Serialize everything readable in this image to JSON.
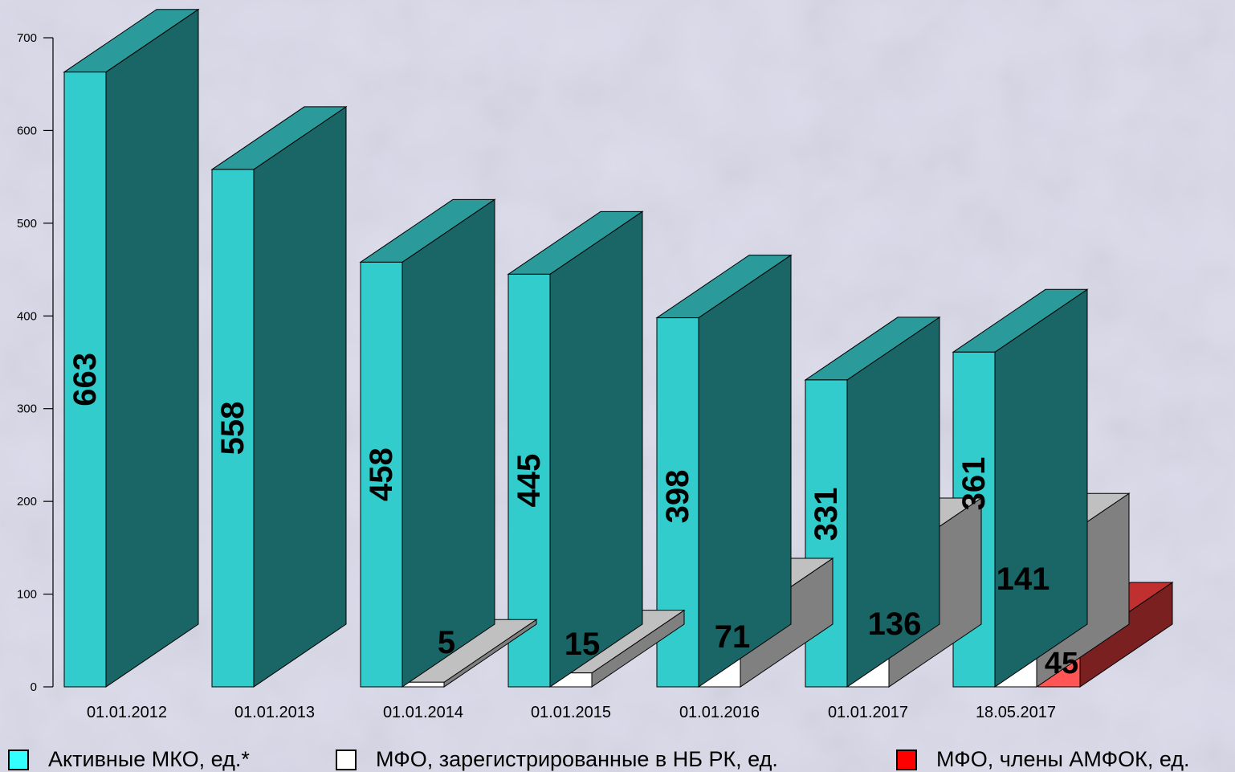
{
  "chart_data": {
    "type": "bar",
    "style": "3d",
    "categories": [
      "01.01.2012",
      "01.01.2013",
      "01.01.2014",
      "01.01.2015",
      "01.01.2016",
      "01.01.2017",
      "18.05.2017"
    ],
    "series": [
      {
        "name": "Активные МКО, ед.*",
        "values": [
          663,
          558,
          458,
          445,
          398,
          331,
          361
        ],
        "color": "#33cccc"
      },
      {
        "name": "МФО, зарегистрированные в НБ РК, ед.",
        "values": [
          null,
          null,
          5,
          15,
          71,
          136,
          141
        ],
        "color": "#ffffff"
      },
      {
        "name": "МФО, члены АМФОК, ед.",
        "values": [
          null,
          null,
          null,
          null,
          null,
          null,
          45
        ],
        "color": "#ff0000"
      }
    ],
    "data_labels": [
      [
        "663",
        "558",
        "458",
        "445",
        "398",
        "331",
        "361"
      ],
      [
        "",
        "",
        "5",
        "15",
        "71",
        "136",
        "141"
      ],
      [
        "",
        "",
        "",
        "",
        "",
        "",
        "45"
      ]
    ],
    "y_ticks": [
      "0",
      "100",
      "200",
      "300",
      "400",
      "500",
      "600",
      "700"
    ],
    "ylim": [
      0,
      700
    ],
    "grid": false,
    "legend_position": "bottom"
  },
  "legend": {
    "items": [
      {
        "label": "Активные МКО, ед.*",
        "color": "#33ffff"
      },
      {
        "label": "МФО, зарегистрированные в НБ РК, ед.",
        "color": "#ffffff"
      },
      {
        "label": "МФО, члены АМФОК, ед.",
        "color": "#ff0000"
      }
    ]
  }
}
